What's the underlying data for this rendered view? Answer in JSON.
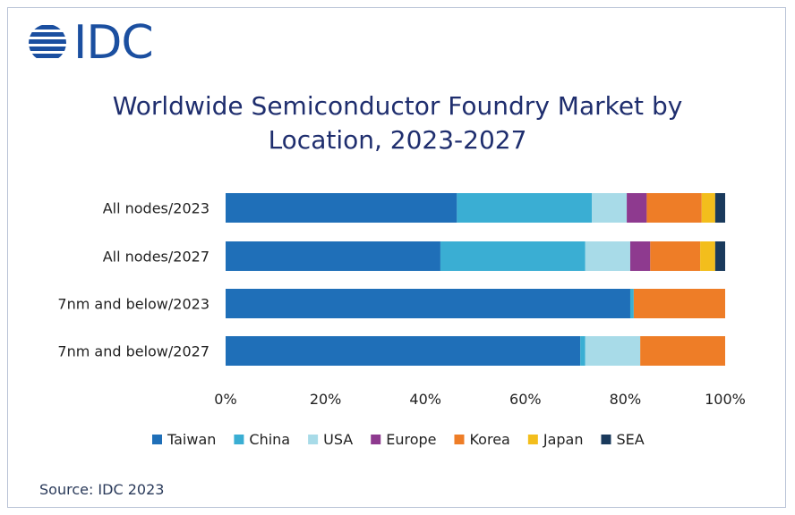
{
  "logo": {
    "text": "IDC"
  },
  "title_lines": [
    "Worldwide Semiconductor Foundry Market by",
    "Location, 2023-2027"
  ],
  "source": "Source: IDC 2023",
  "chart_data": {
    "type": "bar",
    "orientation": "horizontal",
    "stacked": true,
    "title": "Worldwide Semiconductor Foundry Market by Location, 2023-2027",
    "categories": [
      "All nodes/2023",
      "All nodes/2027",
      "7nm and below/2023",
      "7nm and below/2027"
    ],
    "xlim": [
      0,
      100
    ],
    "x_ticks": [
      "0%",
      "20%",
      "40%",
      "60%",
      "80%",
      "100%"
    ],
    "x_tick_values": [
      0,
      20,
      40,
      60,
      80,
      100
    ],
    "grid": false,
    "legend_position": "bottom",
    "series": [
      {
        "name": "Taiwan",
        "color": "#1f6fb8",
        "values": [
          46.3,
          43.0,
          81.0,
          71.0
        ]
      },
      {
        "name": "China",
        "color": "#3aaed3",
        "values": [
          27.0,
          29.0,
          0.7,
          1.0
        ]
      },
      {
        "name": "USA",
        "color": "#a8dbe8",
        "values": [
          7.0,
          9.0,
          0.0,
          11.0
        ]
      },
      {
        "name": "Europe",
        "color": "#8e3a8f",
        "values": [
          4.0,
          4.0,
          0.0,
          0.0
        ]
      },
      {
        "name": "Korea",
        "color": "#ee7d27",
        "values": [
          11.0,
          10.0,
          18.3,
          17.0
        ]
      },
      {
        "name": "Japan",
        "color": "#f3be1c",
        "values": [
          2.7,
          3.0,
          0.0,
          0.0
        ]
      },
      {
        "name": "SEA",
        "color": "#1a3a5c",
        "values": [
          2.0,
          2.0,
          0.0,
          0.0
        ]
      }
    ]
  }
}
